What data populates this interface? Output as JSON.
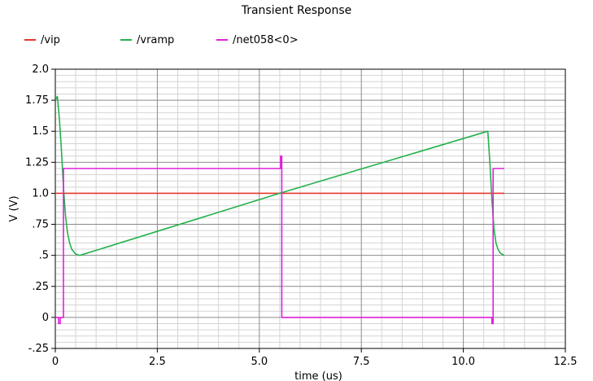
{
  "chart_data": {
    "type": "line",
    "title": "Transient Response",
    "xlabel": "time (us)",
    "ylabel": "V (V)",
    "xlim": [
      0,
      12.5
    ],
    "ylim": [
      -0.25,
      2.0
    ],
    "grid": true,
    "legend_position": "top-left",
    "x_ticks": [
      "0",
      "2.5",
      "5.0",
      "7.5",
      "10.0",
      "12.5"
    ],
    "y_ticks": [
      "-.25",
      "0",
      ".25",
      ".5",
      ".75",
      "1.0",
      "1.25",
      "1.5",
      "1.75",
      "2.0"
    ],
    "series": [
      {
        "name": "/vip",
        "color": "#e8362c",
        "x": [
          0.0,
          11.0
        ],
        "y": [
          1.0,
          1.0
        ]
      },
      {
        "name": "/vramp",
        "color": "#22b24c",
        "x": [
          0.0,
          0.05,
          0.1,
          0.15,
          0.2,
          0.25,
          0.3,
          0.35,
          0.4,
          0.5,
          0.6,
          5.5,
          10.6,
          10.65,
          10.7,
          10.75,
          10.8,
          10.85,
          10.9,
          11.0
        ],
        "y": [
          1.75,
          1.78,
          1.6,
          1.35,
          1.05,
          0.82,
          0.68,
          0.6,
          0.55,
          0.51,
          0.5,
          1.0,
          1.5,
          1.25,
          0.95,
          0.72,
          0.6,
          0.55,
          0.52,
          0.5
        ]
      },
      {
        "name": "/net058<0>",
        "color": "#e21fdc",
        "x": [
          0.0,
          0.08,
          0.08,
          0.12,
          0.12,
          0.2,
          0.2,
          0.25,
          0.25,
          5.52,
          5.52,
          5.55,
          5.55,
          5.56,
          5.56,
          10.7,
          10.7,
          10.73,
          10.73,
          10.8,
          10.8,
          11.0
        ],
        "y": [
          0.0,
          0.0,
          -0.05,
          -0.05,
          0.0,
          0.0,
          1.2,
          1.2,
          1.2,
          1.2,
          1.3,
          1.3,
          0.0,
          0.0,
          0.0,
          0.0,
          -0.05,
          -0.05,
          1.2,
          1.2,
          1.2,
          1.2
        ]
      }
    ]
  }
}
